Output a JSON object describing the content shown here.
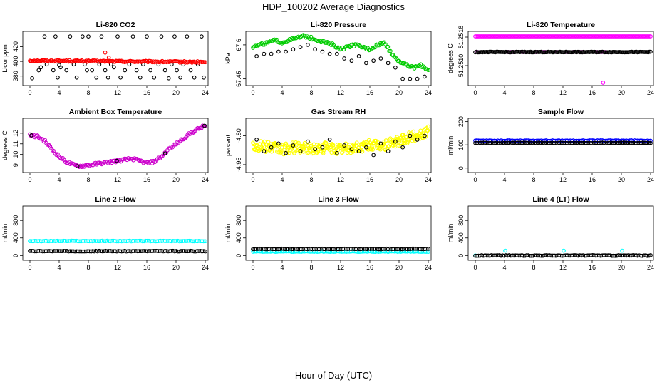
{
  "figure": {
    "title": "HDP_100202  Average Diagnostics",
    "xlabel": "Hour of Day (UTC)"
  },
  "chart_data": [
    {
      "type": "scatter",
      "title": "Li-820 CO2",
      "ylabel": "Licor ppm",
      "xlim": [
        0,
        24
      ],
      "xticks": [
        0,
        4,
        8,
        12,
        16,
        20,
        24
      ],
      "ylim": [
        370,
        438
      ],
      "yticks": [
        380,
        400,
        420
      ],
      "series": [
        {
          "color": "#000000",
          "values_desc": "scattered outliers",
          "x": [
            0.3,
            1.2,
            1.5,
            2.0,
            2.3,
            3.2,
            3.5,
            3.8,
            4.0,
            4.2,
            5.0,
            5.5,
            6.0,
            6.4,
            7.2,
            7.5,
            7.8,
            8.0,
            8.5,
            9.1,
            9.5,
            9.8,
            10.3,
            10.7,
            11.1,
            11.5,
            12.0,
            12.4,
            13.0,
            13.6,
            14.1,
            14.6,
            15.1,
            15.5,
            16.0,
            16.5,
            17.0,
            17.6,
            18.0,
            18.5,
            19.0,
            19.4,
            19.8,
            20.1,
            20.6,
            21.0,
            21.5,
            22.0,
            22.5,
            23.0,
            23.5,
            23.8
          ],
          "y": [
            377,
            388,
            392,
            434,
            396,
            388,
            434,
            378,
            395,
            392,
            388,
            434,
            396,
            378,
            434,
            396,
            388,
            434,
            388,
            378,
            396,
            434,
            388,
            378,
            396,
            392,
            434,
            378,
            388,
            396,
            434,
            388,
            378,
            396,
            434,
            388,
            378,
            396,
            434,
            388,
            377,
            396,
            434,
            388,
            378,
            396,
            434,
            388,
            378,
            396,
            434,
            378
          ]
        },
        {
          "color": "#ff0000",
          "values_desc": "dense ~400 ppm band",
          "x": [
            0,
            24
          ],
          "y": [
            401,
            399
          ],
          "outliers_x": [
            10.3,
            10.8
          ],
          "outliers_y": [
            412,
            405
          ]
        }
      ]
    },
    {
      "type": "scatter",
      "title": "Li-820 Pressure",
      "ylabel": "kPa",
      "xlim": [
        0,
        24
      ],
      "xticks": [
        0,
        4,
        8,
        12,
        16,
        20,
        24
      ],
      "ylim": [
        67.43,
        67.65
      ],
      "yticks": [
        67.45,
        67.6
      ],
      "series": [
        {
          "color": "#00cc00",
          "x": [
            0,
            1,
            2,
            3,
            4,
            5,
            6,
            7,
            8,
            9,
            10,
            11,
            12,
            13,
            14,
            15,
            16,
            17,
            18,
            19,
            20,
            21,
            22,
            23,
            24
          ],
          "y": [
            67.59,
            67.6,
            67.61,
            67.62,
            67.61,
            67.62,
            67.63,
            67.64,
            67.63,
            67.62,
            67.61,
            67.6,
            67.58,
            67.59,
            67.6,
            67.59,
            67.58,
            67.6,
            67.61,
            67.56,
            67.53,
            67.51,
            67.5,
            67.51,
            67.49
          ]
        },
        {
          "color": "#000000",
          "x": [
            0.5,
            1.5,
            2.5,
            3.5,
            4.5,
            5.5,
            6.5,
            7.5,
            8.5,
            9.5,
            10.5,
            11.5,
            12.5,
            13.5,
            14.5,
            15.5,
            16.5,
            17.5,
            18.5,
            19.5,
            20.5,
            21.5,
            22.5,
            23.5
          ],
          "y": [
            67.55,
            67.56,
            67.56,
            67.57,
            67.57,
            67.58,
            67.59,
            67.6,
            67.58,
            67.57,
            67.56,
            67.56,
            67.54,
            67.53,
            67.55,
            67.52,
            67.53,
            67.54,
            67.52,
            67.5,
            67.45,
            67.45,
            67.45,
            67.46
          ]
        }
      ]
    },
    {
      "type": "scatter",
      "title": "Li-820 Temperature",
      "ylabel": "degrees C",
      "xlim": [
        0,
        24
      ],
      "xticks": [
        0,
        4,
        8,
        12,
        16,
        20,
        24
      ],
      "ylim": [
        51.2505,
        51.2519
      ],
      "yticks": [
        51.251,
        51.2518
      ],
      "ytick_labels": [
        "51.2510",
        "51.2518"
      ],
      "series": [
        {
          "color": "#ff00ff",
          "x": [
            0,
            24
          ],
          "y": [
            51.25182,
            51.25182
          ],
          "mid_x": [
            0.3,
            4.5,
            4.8,
            5.2,
            6.5,
            8.3,
            9.3,
            9.6,
            11.2,
            12.5,
            13.4,
            14.3,
            14.7,
            16.6,
            17.0,
            17.3,
            17.6,
            17.8
          ],
          "mid_y": [
            51.25138,
            51.25138,
            51.25138,
            51.25138,
            51.25138,
            51.25138,
            51.25138,
            51.25138,
            51.25138,
            51.25138,
            51.25138,
            51.25138,
            51.25138,
            51.25138,
            51.25138,
            51.25138,
            51.25138,
            51.25138
          ],
          "low_x": [
            17.5
          ],
          "low_y": [
            51.25052
          ]
        },
        {
          "color": "#000000",
          "x": [
            4.0
          ],
          "y": [
            51.25138
          ]
        }
      ]
    },
    {
      "type": "scatter",
      "title": "Ambient Box Temperature",
      "ylabel": "degrees C",
      "xlim": [
        0,
        24
      ],
      "xticks": [
        0,
        4,
        8,
        12,
        16,
        20,
        24
      ],
      "ylim": [
        8.5,
        13.2
      ],
      "yticks": [
        9,
        10,
        11,
        12
      ],
      "series": [
        {
          "color": "#cc00cc",
          "x": [
            0,
            1,
            2,
            3,
            4,
            5,
            6,
            7,
            8,
            9,
            10,
            11,
            12,
            13,
            14,
            15,
            16,
            17,
            18,
            19,
            20,
            21,
            22,
            23,
            24
          ],
          "y": [
            11.8,
            11.7,
            11.3,
            10.5,
            9.8,
            9.3,
            9.0,
            8.9,
            9.0,
            9.1,
            9.2,
            9.3,
            9.4,
            9.5,
            9.6,
            9.4,
            9.2,
            9.3,
            9.8,
            10.5,
            11.0,
            11.5,
            12.0,
            12.4,
            12.7
          ]
        },
        {
          "color": "#000000",
          "x": [
            0.2,
            6.5,
            11.9,
            18.5,
            23.9
          ],
          "y": [
            11.8,
            8.9,
            9.4,
            10.1,
            12.7
          ]
        }
      ]
    },
    {
      "type": "scatter",
      "title": "Gas Stream RH",
      "ylabel": "percent",
      "xlim": [
        0,
        24
      ],
      "xticks": [
        0,
        4,
        8,
        12,
        16,
        20,
        24
      ],
      "ylim": [
        -4.98,
        -4.72
      ],
      "yticks": [
        -4.95,
        -4.8
      ],
      "ytick_labels": [
        "-4.95",
        "-4.80"
      ],
      "series": [
        {
          "color": "#ffff00",
          "x": [
            0,
            2,
            4,
            6,
            8,
            10,
            12,
            14,
            16,
            18,
            20,
            22,
            24
          ],
          "y": [
            -4.85,
            -4.86,
            -4.87,
            -4.86,
            -4.87,
            -4.86,
            -4.87,
            -4.86,
            -4.85,
            -4.85,
            -4.83,
            -4.8,
            -4.78
          ]
        },
        {
          "color": "#000000",
          "x": [
            0.5,
            1.5,
            2.5,
            3.5,
            4.5,
            5.5,
            6.5,
            7.5,
            8.5,
            9.5,
            10.5,
            11.5,
            12.5,
            13.5,
            14.5,
            15.5,
            16.5,
            17.5,
            18.5,
            19.5,
            20.5,
            21.5,
            22.5,
            23.5
          ],
          "y": [
            -4.82,
            -4.88,
            -4.86,
            -4.84,
            -4.89,
            -4.85,
            -4.88,
            -4.83,
            -4.87,
            -4.86,
            -4.82,
            -4.89,
            -4.85,
            -4.87,
            -4.88,
            -4.86,
            -4.9,
            -4.84,
            -4.88,
            -4.83,
            -4.86,
            -4.8,
            -4.82,
            -4.8
          ]
        }
      ]
    },
    {
      "type": "scatter",
      "title": "Sample Flow",
      "ylabel": "ml/min",
      "xlim": [
        0,
        24
      ],
      "xticks": [
        0,
        4,
        8,
        12,
        16,
        20,
        24
      ],
      "ylim": [
        -10,
        205
      ],
      "yticks": [
        0,
        100,
        200
      ],
      "series": [
        {
          "color": "#0000ff",
          "x": [
            0,
            24
          ],
          "y": [
            118,
            118
          ]
        },
        {
          "color": "#000000",
          "x": [
            0,
            24
          ],
          "y": [
            108,
            108
          ]
        }
      ]
    },
    {
      "type": "scatter",
      "title": "Line 2 Flow",
      "ylabel": "ml/min",
      "xlim": [
        0,
        24
      ],
      "xticks": [
        0,
        4,
        8,
        12,
        16,
        20,
        24
      ],
      "ylim": [
        -60,
        1080
      ],
      "yticks": [
        0,
        400,
        800
      ],
      "series": [
        {
          "color": "#00ffff",
          "x": [
            0,
            24
          ],
          "y": [
            330,
            330
          ]
        },
        {
          "color": "#000000",
          "x": [
            0,
            24
          ],
          "y": [
            100,
            100
          ]
        }
      ]
    },
    {
      "type": "scatter",
      "title": "Line 3 Flow",
      "ylabel": "ml/min",
      "xlim": [
        0,
        24
      ],
      "xticks": [
        0,
        4,
        8,
        12,
        16,
        20,
        24
      ],
      "ylim": [
        -60,
        1080
      ],
      "yticks": [
        0,
        400,
        800
      ],
      "series": [
        {
          "color": "#00ffff",
          "x": [
            0,
            24
          ],
          "y": [
            90,
            90
          ]
        },
        {
          "color": "#000000",
          "x": [
            0,
            24
          ],
          "y": [
            150,
            150
          ]
        }
      ]
    },
    {
      "type": "scatter",
      "title": "Line 4 (LT) Flow",
      "ylabel": "ml/min",
      "xlim": [
        0,
        24
      ],
      "xticks": [
        0,
        4,
        8,
        12,
        16,
        20,
        24
      ],
      "ylim": [
        -60,
        1080
      ],
      "yticks": [
        0,
        400,
        800
      ],
      "series": [
        {
          "color": "#00ffff",
          "x": [
            0,
            4.1,
            12.1,
            20.1
          ],
          "y": [
            0,
            110,
            110,
            110
          ]
        },
        {
          "color": "#000000",
          "x": [
            0,
            24
          ],
          "y": [
            0,
            0
          ]
        }
      ]
    }
  ]
}
